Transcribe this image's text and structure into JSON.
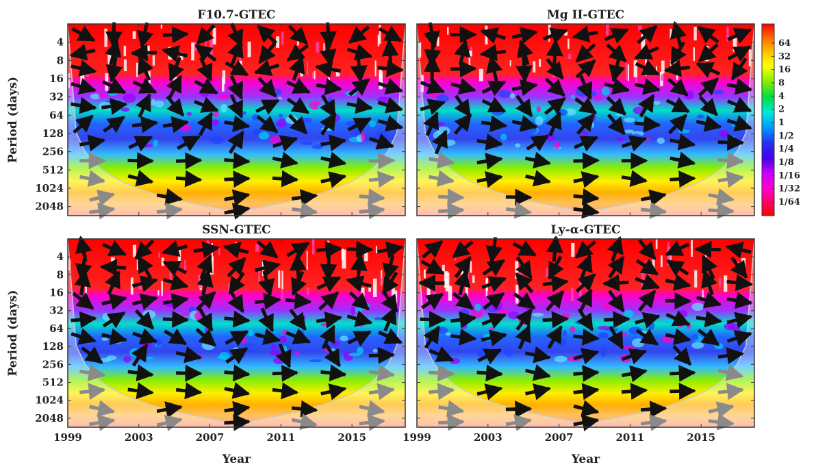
{
  "chart_data": {
    "type": "heatmap",
    "panels": [
      {
        "title": "F10.7-GTEC",
        "ylabel": "Period (days)",
        "xlabel": ""
      },
      {
        "title": "Mg II-GTEC",
        "ylabel": "",
        "xlabel": ""
      },
      {
        "title": "SSN-GTEC",
        "ylabel": "Period (days)",
        "xlabel": "Year"
      },
      {
        "title": "Ly-α-GTEC",
        "ylabel": "",
        "xlabel": "Year"
      }
    ],
    "x_ticks": [
      "1999",
      "2003",
      "2007",
      "2011",
      "2015"
    ],
    "x_range": [
      1999,
      2018
    ],
    "y_ticks": [
      "4",
      "8",
      "16",
      "32",
      "64",
      "128",
      "256",
      "512",
      "1024",
      "2048"
    ],
    "y_range_days": [
      2,
      2900
    ],
    "y_scale": "log2",
    "y_reversed": true,
    "colorbar": {
      "ticks": [
        "64",
        "32",
        "16",
        "8",
        "4",
        "2",
        "1",
        "1/2",
        "1/4",
        "1/8",
        "1/16",
        "1/32",
        "1/64"
      ],
      "colors_top_to_bottom": [
        "#ff0000",
        "#ff7700",
        "#ffd000",
        "#ffff00",
        "#88ee00",
        "#00dd44",
        "#00e8d8",
        "#0099ff",
        "#2233ee",
        "#4400ee",
        "#cc00ff",
        "#ff00cc",
        "#ff0066",
        "#ff0000"
      ]
    },
    "arrow_colors": {
      "inside_cone": "#111111",
      "outside_cone": "#8a8a8a"
    }
  }
}
